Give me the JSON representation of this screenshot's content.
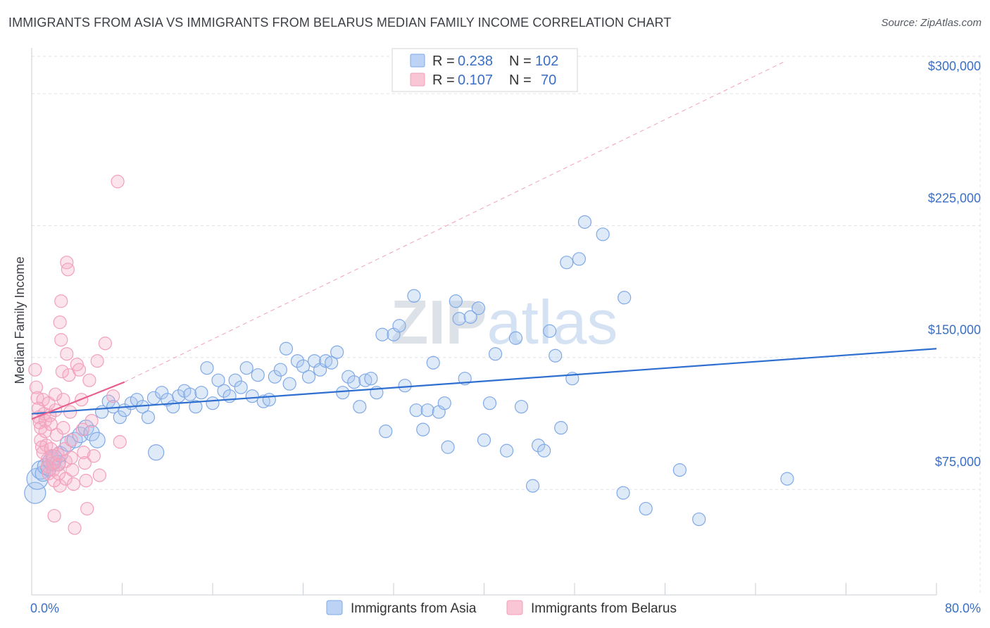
{
  "title": "IMMIGRANTS FROM ASIA VS IMMIGRANTS FROM BELARUS MEDIAN FAMILY INCOME CORRELATION CHART",
  "source": "Source: ZipAtlas.com",
  "watermark": "ZIPatlas",
  "chart_data": {
    "type": "scatter",
    "ylabel": "Median Family Income",
    "xlabel": "",
    "xlim": [
      0,
      80
    ],
    "ylim": [
      15000,
      322000
    ],
    "x_tick_labels": [
      {
        "value": 0,
        "label": "0.0%"
      },
      {
        "value": 80,
        "label": "80.0%"
      }
    ],
    "y_ticks": [
      {
        "value": 75000,
        "label": "$75,000"
      },
      {
        "value": 150000,
        "label": "$150,000"
      },
      {
        "value": 225000,
        "label": "$225,000"
      },
      {
        "value": 300000,
        "label": "$300,000"
      }
    ],
    "legend_stats": [
      {
        "r_label": "R =",
        "r_value": "0.238",
        "n_label": "N =",
        "n_value": "102"
      },
      {
        "r_label": "R =",
        "r_value": "0.107",
        "n_label": "N =",
        "n_value": "70"
      }
    ],
    "series": [
      {
        "name": "Immigrants from Asia",
        "color": "#7fa9e6",
        "line_color": "#2f6fd0",
        "trend": {
          "x": [
            0,
            80
          ],
          "y": [
            118000,
            155000
          ]
        },
        "points": [
          [
            0.3,
            73000,
            15
          ],
          [
            0.5,
            81000,
            15
          ],
          [
            0.8,
            86000,
            13
          ],
          [
            1.0,
            84000,
            11
          ],
          [
            1.2,
            88000,
            11
          ],
          [
            1.5,
            87000,
            11
          ],
          [
            1.8,
            91000,
            13
          ],
          [
            2.0,
            93000,
            11
          ],
          [
            2.3,
            90000,
            11
          ],
          [
            2.5,
            95000,
            11
          ],
          [
            3.2,
            101000,
            11
          ],
          [
            3.8,
            103000,
            11
          ],
          [
            4.3,
            106000,
            11
          ],
          [
            4.8,
            110000,
            11
          ],
          [
            5.3,
            107000,
            11
          ],
          [
            5.8,
            103000,
            11
          ],
          [
            6.2,
            119000,
            9
          ],
          [
            6.8,
            125000,
            9
          ],
          [
            7.2,
            122000,
            9
          ],
          [
            7.8,
            116000,
            9
          ],
          [
            8.2,
            120000,
            9
          ],
          [
            8.8,
            124000,
            9
          ],
          [
            9.3,
            126000,
            9
          ],
          [
            9.8,
            122000,
            9
          ],
          [
            10.3,
            116000,
            9
          ],
          [
            10.8,
            127000,
            9
          ],
          [
            11.0,
            96000,
            11
          ],
          [
            11.5,
            130000,
            9
          ],
          [
            12.0,
            126000,
            9
          ],
          [
            12.5,
            122000,
            9
          ],
          [
            13.0,
            128000,
            9
          ],
          [
            13.5,
            131000,
            9
          ],
          [
            14.0,
            129000,
            9
          ],
          [
            14.5,
            122000,
            9
          ],
          [
            15.0,
            130000,
            9
          ],
          [
            15.5,
            144000,
            9
          ],
          [
            16.0,
            124000,
            9
          ],
          [
            16.5,
            137000,
            9
          ],
          [
            17.0,
            131000,
            9
          ],
          [
            17.5,
            128000,
            9
          ],
          [
            18.0,
            137000,
            9
          ],
          [
            18.5,
            133000,
            9
          ],
          [
            19.0,
            144000,
            9
          ],
          [
            19.5,
            128000,
            9
          ],
          [
            20.0,
            140000,
            9
          ],
          [
            20.5,
            125000,
            9
          ],
          [
            21.0,
            126000,
            9
          ],
          [
            21.5,
            139000,
            9
          ],
          [
            22.0,
            143000,
            9
          ],
          [
            22.5,
            155000,
            9
          ],
          [
            22.8,
            135000,
            9
          ],
          [
            23.5,
            148000,
            9
          ],
          [
            24.0,
            145000,
            9
          ],
          [
            24.5,
            139000,
            9
          ],
          [
            25.0,
            148000,
            9
          ],
          [
            25.5,
            143000,
            9
          ],
          [
            26.0,
            148000,
            9
          ],
          [
            26.5,
            147000,
            9
          ],
          [
            27.0,
            153000,
            9
          ],
          [
            27.5,
            130000,
            9
          ],
          [
            28.0,
            139000,
            9
          ],
          [
            28.5,
            136000,
            9
          ],
          [
            29.0,
            122000,
            9
          ],
          [
            29.5,
            137000,
            9
          ],
          [
            30.0,
            138000,
            9
          ],
          [
            30.5,
            130000,
            9
          ],
          [
            31.0,
            163000,
            9
          ],
          [
            31.3,
            108000,
            9
          ],
          [
            32.0,
            163000,
            9
          ],
          [
            32.5,
            168000,
            9
          ],
          [
            33.0,
            134000,
            9
          ],
          [
            33.8,
            185000,
            9
          ],
          [
            34.0,
            120000,
            9
          ],
          [
            34.6,
            109000,
            9
          ],
          [
            35.0,
            120000,
            9
          ],
          [
            35.5,
            147000,
            9
          ],
          [
            36.0,
            119000,
            9
          ],
          [
            36.5,
            124000,
            9
          ],
          [
            36.8,
            99000,
            9
          ],
          [
            37.5,
            182000,
            9
          ],
          [
            37.8,
            172000,
            9
          ],
          [
            38.3,
            138000,
            9
          ],
          [
            38.8,
            173000,
            9
          ],
          [
            39.5,
            178000,
            9
          ],
          [
            40.0,
            103000,
            9
          ],
          [
            40.5,
            124000,
            9
          ],
          [
            41.0,
            152000,
            9
          ],
          [
            42.0,
            97000,
            9
          ],
          [
            42.8,
            161000,
            9
          ],
          [
            43.3,
            122000,
            9
          ],
          [
            44.3,
            77000,
            9
          ],
          [
            44.8,
            100000,
            9
          ],
          [
            45.3,
            97000,
            9
          ],
          [
            45.8,
            165000,
            9
          ],
          [
            46.3,
            151000,
            9
          ],
          [
            46.8,
            110000,
            9
          ],
          [
            47.8,
            138000,
            9
          ],
          [
            47.3,
            204000,
            9
          ],
          [
            48.4,
            206000,
            9
          ],
          [
            48.9,
            227000,
            9
          ],
          [
            50.5,
            220000,
            9
          ],
          [
            52.3,
            73000,
            9
          ],
          [
            52.4,
            184000,
            9
          ],
          [
            54.3,
            64000,
            9
          ],
          [
            57.3,
            86000,
            9
          ],
          [
            59.0,
            58000,
            9
          ],
          [
            66.8,
            81000,
            9
          ]
        ]
      },
      {
        "name": "Immigrants from Belarus",
        "color": "#f2a0ba",
        "line_color": "#e8608e",
        "trend": {
          "x": [
            0,
            8.2
          ],
          "y": [
            115000,
            136000
          ]
        },
        "points": [
          [
            0.3,
            143000,
            9
          ],
          [
            0.4,
            133000,
            9
          ],
          [
            0.5,
            127000,
            9
          ],
          [
            0.6,
            121000,
            9
          ],
          [
            0.6,
            116000,
            9
          ],
          [
            0.7,
            113000,
            9
          ],
          [
            0.8,
            110000,
            9
          ],
          [
            0.8,
            103000,
            9
          ],
          [
            0.9,
            99000,
            9
          ],
          [
            1.0,
            96000,
            9
          ],
          [
            1.0,
            126000,
            9
          ],
          [
            1.1,
            118000,
            9
          ],
          [
            1.2,
            114000,
            9
          ],
          [
            1.2,
            108000,
            9
          ],
          [
            1.3,
            100000,
            9
          ],
          [
            1.4,
            92000,
            9
          ],
          [
            1.4,
            88000,
            9
          ],
          [
            1.5,
            84000,
            9
          ],
          [
            1.5,
            124000,
            9
          ],
          [
            1.6,
            117000,
            9
          ],
          [
            1.7,
            112000,
            9
          ],
          [
            1.7,
            98000,
            9
          ],
          [
            1.8,
            94000,
            9
          ],
          [
            1.9,
            90000,
            9
          ],
          [
            1.9,
            86000,
            9
          ],
          [
            2.0,
            80000,
            9
          ],
          [
            2.0,
            60000,
            9
          ],
          [
            2.1,
            129000,
            9
          ],
          [
            2.1,
            120000,
            9
          ],
          [
            2.2,
            106000,
            9
          ],
          [
            2.3,
            95000,
            9
          ],
          [
            2.4,
            89000,
            9
          ],
          [
            2.4,
            84000,
            9
          ],
          [
            2.5,
            77000,
            9
          ],
          [
            2.5,
            170000,
            9
          ],
          [
            2.6,
            160000,
            9
          ],
          [
            2.6,
            182000,
            9
          ],
          [
            2.7,
            142000,
            9
          ],
          [
            2.8,
            126000,
            9
          ],
          [
            2.8,
            110000,
            9
          ],
          [
            2.9,
            98000,
            9
          ],
          [
            3.0,
            91000,
            9
          ],
          [
            3.0,
            81000,
            9
          ],
          [
            3.1,
            152000,
            9
          ],
          [
            3.1,
            204000,
            9
          ],
          [
            3.2,
            200000,
            9
          ],
          [
            3.3,
            140000,
            9
          ],
          [
            3.4,
            119000,
            9
          ],
          [
            3.5,
            103000,
            9
          ],
          [
            3.5,
            93000,
            9
          ],
          [
            3.6,
            86000,
            9
          ],
          [
            3.7,
            78000,
            9
          ],
          [
            3.8,
            53000,
            9
          ],
          [
            4.0,
            146000,
            9
          ],
          [
            4.2,
            143000,
            9
          ],
          [
            4.4,
            126000,
            9
          ],
          [
            4.5,
            109000,
            9
          ],
          [
            4.6,
            96000,
            9
          ],
          [
            4.7,
            90000,
            9
          ],
          [
            4.8,
            80000,
            9
          ],
          [
            4.9,
            64000,
            9
          ],
          [
            5.1,
            137000,
            9
          ],
          [
            5.3,
            114000,
            9
          ],
          [
            5.5,
            94000,
            9
          ],
          [
            5.8,
            148000,
            9
          ],
          [
            6.0,
            83000,
            9
          ],
          [
            6.5,
            158000,
            9
          ],
          [
            7.2,
            128000,
            9
          ],
          [
            7.6,
            250000,
            9
          ],
          [
            7.8,
            102000,
            9
          ]
        ]
      }
    ]
  }
}
